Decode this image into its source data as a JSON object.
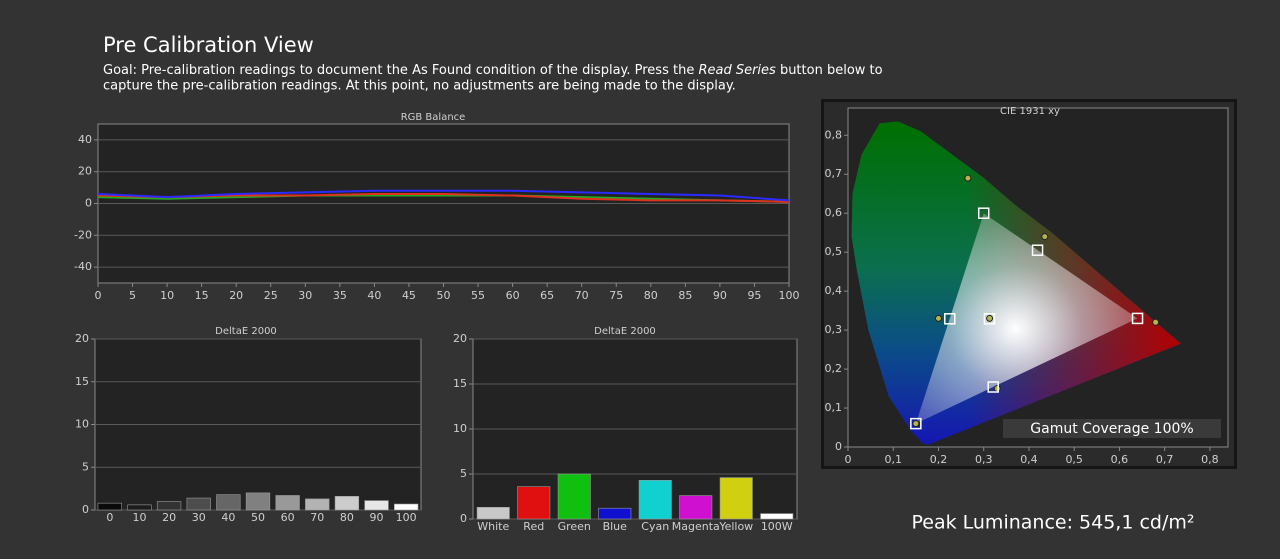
{
  "header": {
    "title": "Pre Calibration View",
    "goal_line1": {
      "before": "Goal: Pre-calibration readings to document the As Found condition of the display. Press the ",
      "emphasis": "Read Series",
      "after": " button below to"
    },
    "goal_line2": "capture the pre-calibration readings. At this point, no adjustments are being made to the display."
  },
  "chart_data": [
    {
      "type": "line",
      "title": "RGB Balance",
      "x": [
        0,
        10,
        20,
        30,
        40,
        50,
        60,
        70,
        80,
        90,
        100
      ],
      "xlim": [
        0,
        100
      ],
      "xticks": [
        0,
        5,
        10,
        15,
        20,
        25,
        30,
        35,
        40,
        45,
        50,
        55,
        60,
        65,
        70,
        75,
        80,
        85,
        90,
        95,
        100
      ],
      "ylim": [
        -50,
        50
      ],
      "yticks": [
        -40,
        -20,
        0,
        20,
        40
      ],
      "grid": true,
      "series": [
        {
          "color": "#22aa22",
          "values": [
            4,
            3,
            4,
            5,
            5,
            5,
            5,
            4,
            3,
            2,
            1
          ]
        },
        {
          "color": "#e03020",
          "values": [
            5,
            4,
            5,
            5,
            6,
            6,
            5,
            3,
            2,
            2,
            1
          ]
        },
        {
          "color": "#2a2aff",
          "values": [
            6,
            4,
            6,
            7,
            8,
            8,
            8,
            7,
            6,
            5,
            2
          ]
        }
      ]
    },
    {
      "type": "bar",
      "title": "DeltaE 2000",
      "categories": [
        "0",
        "10",
        "20",
        "30",
        "40",
        "50",
        "60",
        "70",
        "80",
        "90",
        "100"
      ],
      "values": [
        0.8,
        0.6,
        1.0,
        1.4,
        1.8,
        2.0,
        1.7,
        1.3,
        1.6,
        1.1,
        0.7
      ],
      "colors": [
        "#0a0a0a",
        "#1c1c1c",
        "#333333",
        "#4d4d4d",
        "#666666",
        "#808080",
        "#999999",
        "#b3b3b3",
        "#cccccc",
        "#e6e6e6",
        "#ffffff"
      ],
      "ylim": [
        0,
        20
      ],
      "yticks": [
        0,
        5,
        10,
        15,
        20
      ],
      "grid": true
    },
    {
      "type": "bar",
      "title": "DeltaE 2000",
      "categories": [
        "White",
        "Red",
        "Green",
        "Blue",
        "Cyan",
        "Magenta",
        "Yellow",
        "100W"
      ],
      "values": [
        1.3,
        3.6,
        5.0,
        1.2,
        4.3,
        2.6,
        4.6,
        0.6
      ],
      "colors": [
        "#c8c8c8",
        "#e01010",
        "#10c010",
        "#1010d0",
        "#10d0d0",
        "#d010d0",
        "#d0d010",
        "#ffffff"
      ],
      "ylim": [
        0,
        20
      ],
      "yticks": [
        0,
        5,
        10,
        15,
        20
      ],
      "grid": true
    },
    {
      "type": "scatter",
      "title": "CIE 1931 xy",
      "xlim": [
        0,
        0.84
      ],
      "xticks": [
        0,
        {
          "value": 0.1,
          "label": "0,1"
        },
        {
          "value": 0.2,
          "label": "0,2"
        },
        {
          "value": 0.3,
          "label": "0,3"
        },
        {
          "value": 0.4,
          "label": "0,4"
        },
        {
          "value": 0.5,
          "label": "0,5"
        },
        {
          "value": 0.6,
          "label": "0,6"
        },
        {
          "value": 0.7,
          "label": "0,7"
        },
        {
          "value": 0.8,
          "label": "0,8"
        }
      ],
      "ylim": [
        0,
        0.87
      ],
      "yticks": [
        0,
        {
          "value": 0.1,
          "label": "0,1"
        },
        {
          "value": 0.2,
          "label": "0,2"
        },
        {
          "value": 0.3,
          "label": "0,3"
        },
        {
          "value": 0.4,
          "label": "0,4"
        },
        {
          "value": 0.5,
          "label": "0,5"
        },
        {
          "value": 0.6,
          "label": "0,6"
        },
        {
          "value": 0.7,
          "label": "0,7"
        },
        {
          "value": 0.8,
          "label": "0,8"
        }
      ],
      "points": [
        {
          "marker": "square",
          "color": "#ffffff",
          "x": [
            0.64,
            0.3,
            0.15,
            0.3127,
            0.225,
            0.321,
            0.419
          ],
          "y": [
            0.33,
            0.6,
            0.06,
            0.329,
            0.329,
            0.154,
            0.505
          ]
        },
        {
          "marker": "circle",
          "color": "#b4b44a",
          "x": [
            0.68,
            0.265,
            0.15,
            0.313,
            0.2,
            0.33,
            0.435
          ],
          "y": [
            0.32,
            0.69,
            0.06,
            0.33,
            0.33,
            0.15,
            0.54
          ]
        }
      ],
      "annotation": "Gamut Coverage 100%"
    }
  ],
  "peak_luminance": "Peak Luminance: 545,1 cd/m²"
}
